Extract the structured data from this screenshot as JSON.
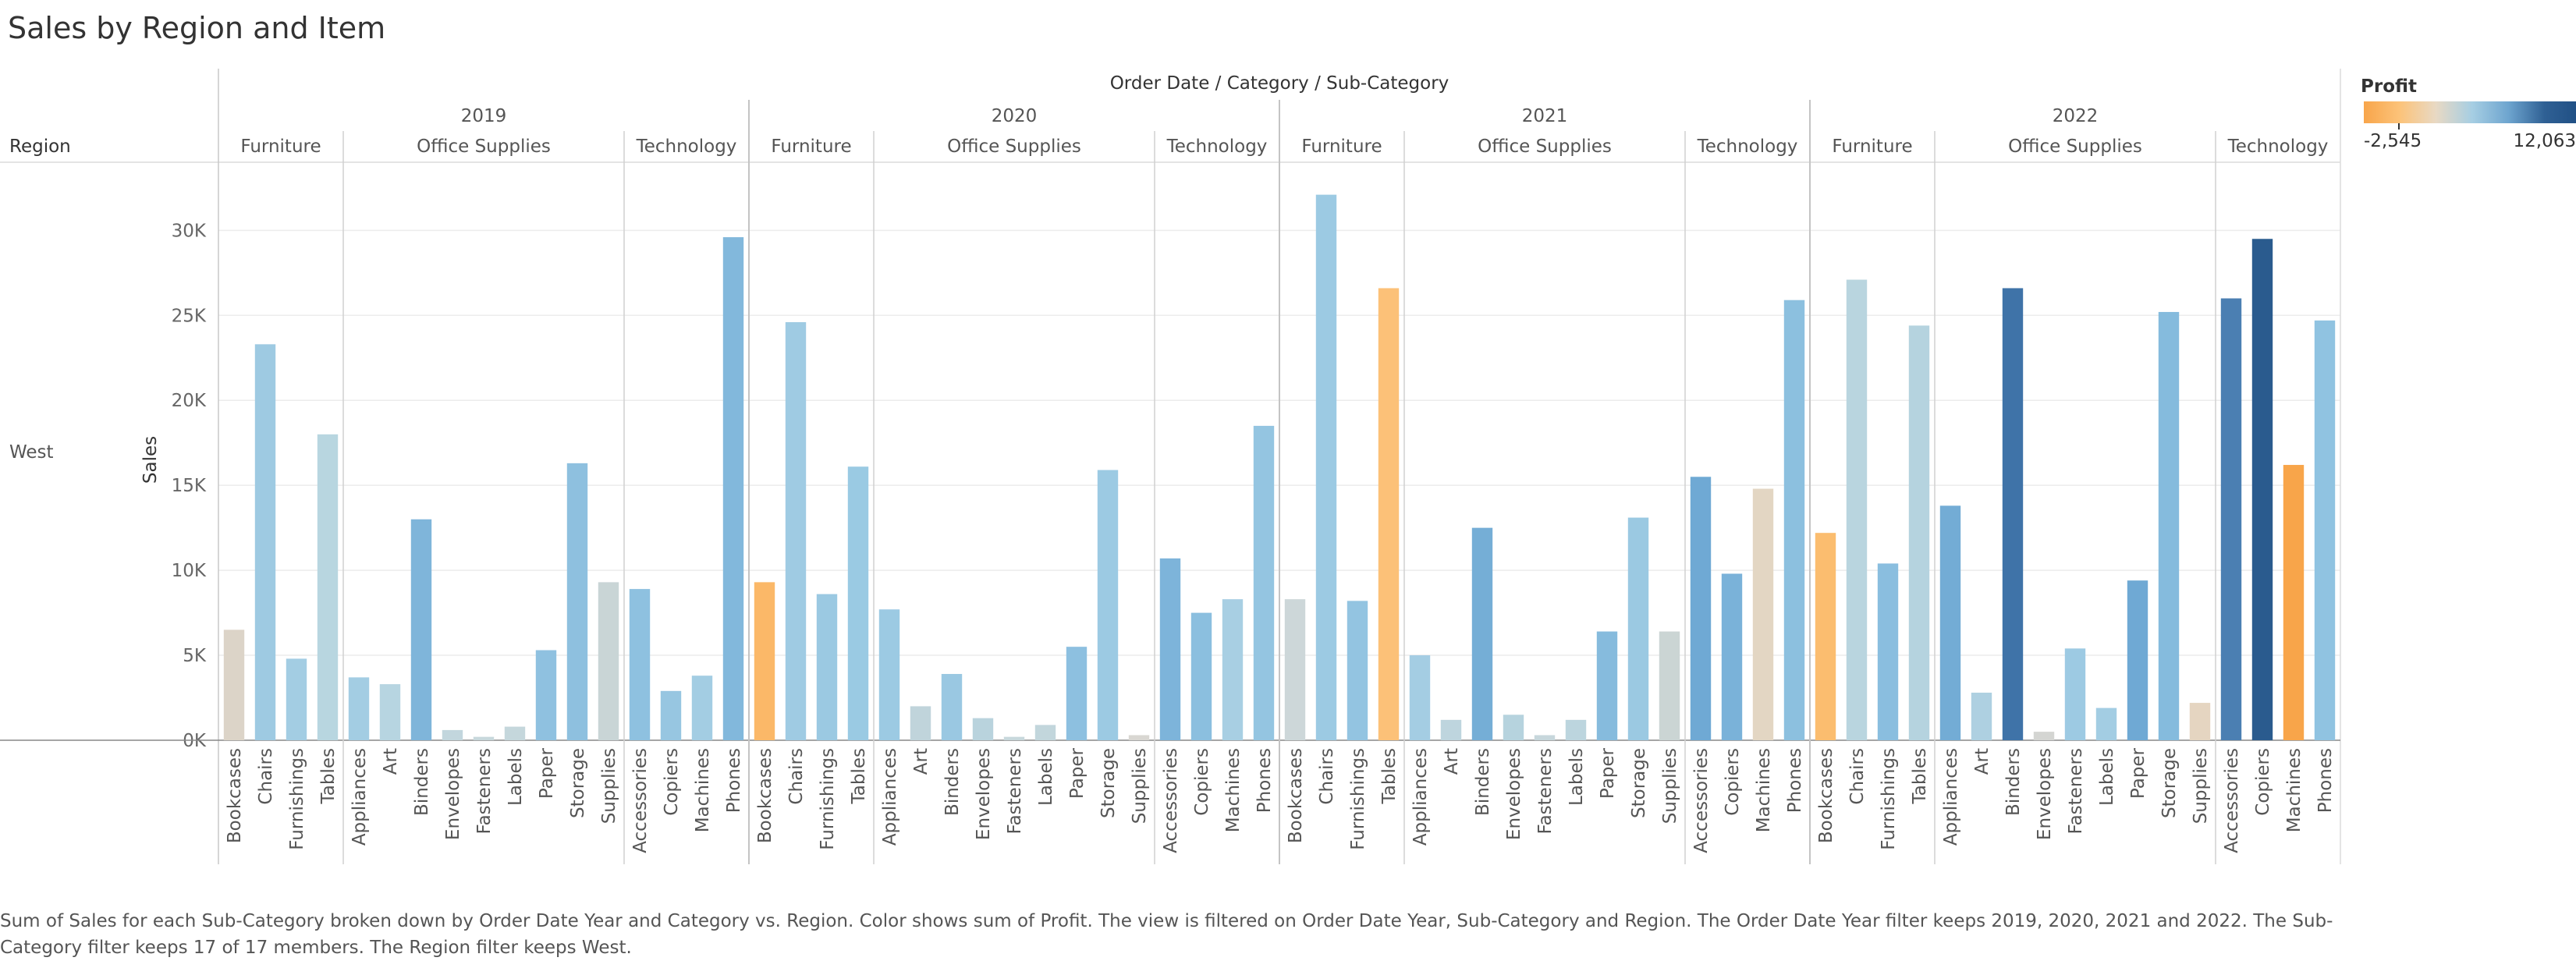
{
  "page": {
    "title": "Sales by Region and Item",
    "caption": "Sum of Sales for each Sub-Category broken down by Order Date Year and Category vs. Region.  Color shows sum of Profit. The view is filtered on Order Date Year, Sub-Category and Region. The Order Date Year filter keeps 2019, 2020, 2021 and 2022. The Sub-Category filter keeps 17 of 17 members. The Region filter keeps West."
  },
  "legend": {
    "title": "Profit",
    "min_label": "-2,545",
    "max_label": "12,063",
    "min_value": -2545,
    "max_value": 12063,
    "colors": [
      "#f8a54a",
      "#fcc37a",
      "#e8d9c4",
      "#a6cee3",
      "#6ea5cf",
      "#2f6094",
      "#1f4e83"
    ]
  },
  "chart_data": {
    "type": "bar",
    "header_title": "Order Date  /  Category  /  Sub-Category",
    "row_header": "Region",
    "row_value": "West",
    "ylabel": "Sales",
    "ylim": [
      0,
      33000
    ],
    "yticks": [
      0,
      5000,
      10000,
      15000,
      20000,
      25000,
      30000
    ],
    "ytick_labels": [
      "0K",
      "5K",
      "10K",
      "15K",
      "20K",
      "25K",
      "30K"
    ],
    "grid": true,
    "years": [
      {
        "year": "2019",
        "categories": [
          {
            "name": "Furniture",
            "items": [
              {
                "sub": "Bookcases",
                "value": 6500,
                "color": "#dcd4c8"
              },
              {
                "sub": "Chairs",
                "value": 23300,
                "color": "#9ecae2"
              },
              {
                "sub": "Furnishings",
                "value": 4800,
                "color": "#a3cde3"
              },
              {
                "sub": "Tables",
                "value": 18000,
                "color": "#b8d6e0"
              }
            ]
          },
          {
            "name": "Office Supplies",
            "items": [
              {
                "sub": "Appliances",
                "value": 3700,
                "color": "#a3cde3"
              },
              {
                "sub": "Art",
                "value": 3300,
                "color": "#b7d5e1"
              },
              {
                "sub": "Binders",
                "value": 13000,
                "color": "#7fb5da"
              },
              {
                "sub": "Envelopes",
                "value": 600,
                "color": "#c2d6dd"
              },
              {
                "sub": "Fasteners",
                "value": 200,
                "color": "#c8d8dc"
              },
              {
                "sub": "Labels",
                "value": 800,
                "color": "#c5d7dc"
              },
              {
                "sub": "Paper",
                "value": 5300,
                "color": "#8fc1e0"
              },
              {
                "sub": "Storage",
                "value": 16300,
                "color": "#8ec0df"
              },
              {
                "sub": "Supplies",
                "value": 9300,
                "color": "#c9d5d6"
              }
            ]
          },
          {
            "name": "Technology",
            "items": [
              {
                "sub": "Accessories",
                "value": 8900,
                "color": "#8ec1e0"
              },
              {
                "sub": "Copiers",
                "value": 2900,
                "color": "#97c6e1"
              },
              {
                "sub": "Machines",
                "value": 3800,
                "color": "#a3cde3"
              },
              {
                "sub": "Phones",
                "value": 29600,
                "color": "#82b8dc"
              }
            ]
          }
        ]
      },
      {
        "year": "2020",
        "categories": [
          {
            "name": "Furniture",
            "items": [
              {
                "sub": "Bookcases",
                "value": 9300,
                "color": "#fbb868"
              },
              {
                "sub": "Chairs",
                "value": 24600,
                "color": "#9fcbe3"
              },
              {
                "sub": "Furnishings",
                "value": 8600,
                "color": "#9bc9e2"
              },
              {
                "sub": "Tables",
                "value": 16100,
                "color": "#9acae3"
              }
            ]
          },
          {
            "name": "Office Supplies",
            "items": [
              {
                "sub": "Appliances",
                "value": 7700,
                "color": "#9ccae3"
              },
              {
                "sub": "Art",
                "value": 2000,
                "color": "#c0d4db"
              },
              {
                "sub": "Binders",
                "value": 3900,
                "color": "#9ac8e2"
              },
              {
                "sub": "Envelopes",
                "value": 1300,
                "color": "#b9d3dd"
              },
              {
                "sub": "Fasteners",
                "value": 200,
                "color": "#c8d8dc"
              },
              {
                "sub": "Labels",
                "value": 900,
                "color": "#c2d6dc"
              },
              {
                "sub": "Paper",
                "value": 5500,
                "color": "#8dc0e0"
              },
              {
                "sub": "Storage",
                "value": 15900,
                "color": "#9ccae3"
              },
              {
                "sub": "Supplies",
                "value": 300,
                "color": "#d9d7d2"
              }
            ]
          },
          {
            "name": "Technology",
            "items": [
              {
                "sub": "Accessories",
                "value": 10700,
                "color": "#7db4da"
              },
              {
                "sub": "Copiers",
                "value": 7500,
                "color": "#8bbfdf"
              },
              {
                "sub": "Machines",
                "value": 8300,
                "color": "#a8cfe3"
              },
              {
                "sub": "Phones",
                "value": 18500,
                "color": "#94c5e1"
              }
            ]
          }
        ]
      },
      {
        "year": "2021",
        "categories": [
          {
            "name": "Furniture",
            "items": [
              {
                "sub": "Bookcases",
                "value": 8300,
                "color": "#cdd7d9"
              },
              {
                "sub": "Chairs",
                "value": 32100,
                "color": "#9ccae3"
              },
              {
                "sub": "Furnishings",
                "value": 8200,
                "color": "#93c4e1"
              },
              {
                "sub": "Tables",
                "value": 26600,
                "color": "#fcc178"
              }
            ]
          },
          {
            "name": "Office Supplies",
            "items": [
              {
                "sub": "Appliances",
                "value": 5000,
                "color": "#a4cde3"
              },
              {
                "sub": "Art",
                "value": 1200,
                "color": "#bed5de"
              },
              {
                "sub": "Binders",
                "value": 12500,
                "color": "#75aed6"
              },
              {
                "sub": "Envelopes",
                "value": 1500,
                "color": "#b6d3de"
              },
              {
                "sub": "Fasteners",
                "value": 300,
                "color": "#c7d7dc"
              },
              {
                "sub": "Labels",
                "value": 1200,
                "color": "#bcd5de"
              },
              {
                "sub": "Paper",
                "value": 6400,
                "color": "#86bbdd"
              },
              {
                "sub": "Storage",
                "value": 13100,
                "color": "#9bc9e2"
              },
              {
                "sub": "Supplies",
                "value": 6400,
                "color": "#cbd5d4"
              }
            ]
          },
          {
            "name": "Technology",
            "items": [
              {
                "sub": "Accessories",
                "value": 15500,
                "color": "#6fa9d4"
              },
              {
                "sub": "Copiers",
                "value": 9800,
                "color": "#7ab2d9"
              },
              {
                "sub": "Machines",
                "value": 14800,
                "color": "#e3d6c3"
              },
              {
                "sub": "Phones",
                "value": 25900,
                "color": "#8cc0df"
              }
            ]
          }
        ]
      },
      {
        "year": "2022",
        "categories": [
          {
            "name": "Furniture",
            "items": [
              {
                "sub": "Bookcases",
                "value": 12200,
                "color": "#fbbd6f"
              },
              {
                "sub": "Chairs",
                "value": 27100,
                "color": "#b9d5df"
              },
              {
                "sub": "Furnishings",
                "value": 10400,
                "color": "#8abedf"
              },
              {
                "sub": "Tables",
                "value": 24400,
                "color": "#b5d3df"
              }
            ]
          },
          {
            "name": "Office Supplies",
            "items": [
              {
                "sub": "Appliances",
                "value": 13800,
                "color": "#73acd5"
              },
              {
                "sub": "Art",
                "value": 2800,
                "color": "#aed0e1"
              },
              {
                "sub": "Binders",
                "value": 26600,
                "color": "#3f73a8"
              },
              {
                "sub": "Envelopes",
                "value": 500,
                "color": "#d4d5d2"
              },
              {
                "sub": "Fasteners",
                "value": 5400,
                "color": "#9dcae3"
              },
              {
                "sub": "Labels",
                "value": 1900,
                "color": "#a3cde3"
              },
              {
                "sub": "Paper",
                "value": 9400,
                "color": "#6fa9d4"
              },
              {
                "sub": "Storage",
                "value": 25200,
                "color": "#85bbdd"
              },
              {
                "sub": "Supplies",
                "value": 2200,
                "color": "#e5d5c1"
              }
            ]
          },
          {
            "name": "Technology",
            "items": [
              {
                "sub": "Accessories",
                "value": 26000,
                "color": "#4b7fb2"
              },
              {
                "sub": "Copiers",
                "value": 29500,
                "color": "#2a5b8e"
              },
              {
                "sub": "Machines",
                "value": 16200,
                "color": "#f8a54a"
              },
              {
                "sub": "Phones",
                "value": 24700,
                "color": "#90c3e1"
              }
            ]
          }
        ]
      }
    ]
  }
}
